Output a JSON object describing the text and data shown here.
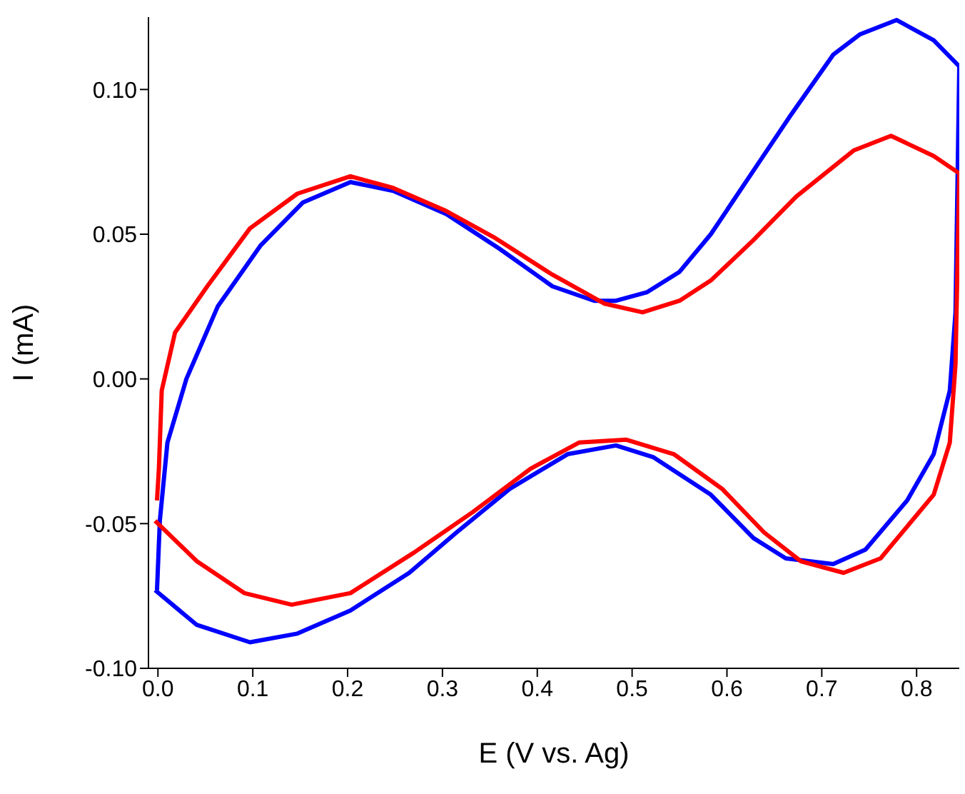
{
  "chart_data": {
    "type": "line",
    "xlabel": "E (V vs. Ag)",
    "ylabel": "I (mA)",
    "xlim": [
      -0.01,
      0.845
    ],
    "ylim": [
      -0.1,
      0.125
    ],
    "xticks": [
      {
        "value": 0,
        "label": "0.0"
      },
      {
        "value": 0.1,
        "label": "0.1"
      },
      {
        "value": 0.2,
        "label": "0.2"
      },
      {
        "value": 0.3,
        "label": "0.3"
      },
      {
        "value": 0.4,
        "label": "0.4"
      },
      {
        "value": 0.5,
        "label": "0.5"
      },
      {
        "value": 0.6,
        "label": "0.6"
      },
      {
        "value": 0.7,
        "label": "0.7"
      },
      {
        "value": 0.8,
        "label": "0.8"
      }
    ],
    "yticks": [
      {
        "value": -0.1,
        "label": "-0.10"
      },
      {
        "value": -0.05,
        "label": "-0.05"
      },
      {
        "value": 0,
        "label": "0.00"
      },
      {
        "value": 0.05,
        "label": "0.05"
      },
      {
        "value": 0.1,
        "label": "0.10"
      }
    ],
    "marker": "none",
    "line_style": "solid",
    "series": [
      {
        "color": "#0000ff",
        "x": [
          -0.003,
          0.041,
          0.097,
          0.147,
          0.203,
          0.265,
          0.315,
          0.371,
          0.432,
          0.483,
          0.522,
          0.583,
          0.628,
          0.662,
          0.712,
          0.746,
          0.79,
          0.818,
          0.835,
          0.841,
          0.845,
          0.818,
          0.779,
          0.74,
          0.712,
          0.667,
          0.628,
          0.583,
          0.55,
          0.516,
          0.483,
          0.46,
          0.416,
          0.36,
          0.304,
          0.248,
          0.203,
          0.153,
          0.108,
          0.063,
          0.03,
          0.01,
          0.002,
          -0.001
        ],
        "values": [
          -0.073,
          -0.085,
          -0.091,
          -0.088,
          -0.08,
          -0.067,
          -0.053,
          -0.038,
          -0.026,
          -0.023,
          -0.027,
          -0.04,
          -0.055,
          -0.062,
          -0.064,
          -0.059,
          -0.042,
          -0.026,
          -0.004,
          0.023,
          0.108,
          0.117,
          0.124,
          0.119,
          0.112,
          0.091,
          0.072,
          0.05,
          0.037,
          0.03,
          0.027,
          0.027,
          0.032,
          0.045,
          0.057,
          0.065,
          0.068,
          0.061,
          0.046,
          0.025,
          0.0,
          -0.022,
          -0.049,
          -0.073
        ]
      },
      {
        "color": "#ff0000",
        "x": [
          -0.003,
          0.041,
          0.091,
          0.141,
          0.203,
          0.27,
          0.332,
          0.393,
          0.444,
          0.494,
          0.544,
          0.595,
          0.639,
          0.678,
          0.723,
          0.762,
          0.818,
          0.835,
          0.841,
          0.845,
          0.818,
          0.773,
          0.734,
          0.673,
          0.628,
          0.583,
          0.55,
          0.511,
          0.471,
          0.416,
          0.354,
          0.304,
          0.248,
          0.203,
          0.147,
          0.097,
          0.052,
          0.018,
          0.004,
          0.001,
          -0.001
        ],
        "values": [
          -0.049,
          -0.063,
          -0.074,
          -0.078,
          -0.074,
          -0.06,
          -0.046,
          -0.031,
          -0.022,
          -0.021,
          -0.026,
          -0.038,
          -0.053,
          -0.063,
          -0.067,
          -0.062,
          -0.04,
          -0.022,
          0.005,
          0.071,
          0.077,
          0.084,
          0.079,
          0.063,
          0.048,
          0.034,
          0.027,
          0.023,
          0.026,
          0.036,
          0.049,
          0.058,
          0.066,
          0.07,
          0.064,
          0.052,
          0.032,
          0.016,
          -0.004,
          -0.031,
          -0.042
        ]
      }
    ]
  }
}
